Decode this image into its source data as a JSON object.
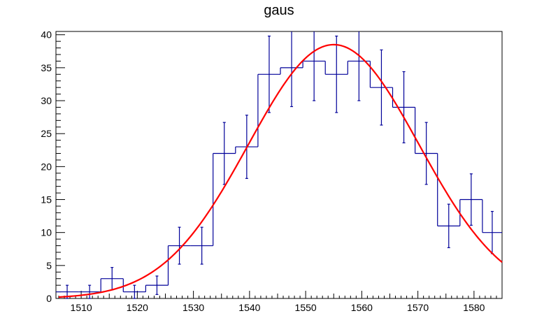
{
  "chart_data": {
    "type": "histogram",
    "title": "gaus",
    "xlabel": "",
    "ylabel": "",
    "xlim": [
      1505.5,
      1585
    ],
    "ylim": [
      0,
      40.5
    ],
    "grid": false,
    "x_ticks": [
      1510,
      1520,
      1530,
      1540,
      1550,
      1560,
      1570,
      1580
    ],
    "x_tick_labels": [
      "1510",
      "1520",
      "1530",
      "1540",
      "1550",
      "1560",
      "1570",
      "1580"
    ],
    "y_ticks": [
      0,
      5,
      10,
      15,
      20,
      25,
      30,
      35,
      40
    ],
    "y_tick_labels": [
      "0",
      "5",
      "10",
      "15",
      "20",
      "25",
      "30",
      "35",
      "40"
    ],
    "series": [
      {
        "kind": "histogram",
        "color": "#000099",
        "bins": [
          {
            "x_low": 1505.5,
            "x_high": 1509.5,
            "y": 1,
            "err": 1
          },
          {
            "x_low": 1509.5,
            "x_high": 1513.5,
            "y": 1,
            "err": 1
          },
          {
            "x_low": 1513.5,
            "x_high": 1517.5,
            "y": 3,
            "err": 1.7
          },
          {
            "x_low": 1517.5,
            "x_high": 1521.5,
            "y": 1,
            "err": 1
          },
          {
            "x_low": 1521.5,
            "x_high": 1525.5,
            "y": 2,
            "err": 1.4
          },
          {
            "x_low": 1525.5,
            "x_high": 1529.5,
            "y": 8,
            "err": 2.8
          },
          {
            "x_low": 1529.5,
            "x_high": 1533.5,
            "y": 8,
            "err": 2.8
          },
          {
            "x_low": 1533.5,
            "x_high": 1537.5,
            "y": 22,
            "err": 4.7
          },
          {
            "x_low": 1537.5,
            "x_high": 1541.5,
            "y": 23,
            "err": 4.8
          },
          {
            "x_low": 1541.5,
            "x_high": 1545.5,
            "y": 34,
            "err": 5.8
          },
          {
            "x_low": 1545.5,
            "x_high": 1549.5,
            "y": 35,
            "err": 5.9
          },
          {
            "x_low": 1549.5,
            "x_high": 1553.5,
            "y": 36,
            "err": 6
          },
          {
            "x_low": 1553.5,
            "x_high": 1557.5,
            "y": 34,
            "err": 5.8
          },
          {
            "x_low": 1557.5,
            "x_high": 1561.5,
            "y": 36,
            "err": 6
          },
          {
            "x_low": 1561.5,
            "x_high": 1565.5,
            "y": 32,
            "err": 5.7
          },
          {
            "x_low": 1565.5,
            "x_high": 1569.5,
            "y": 29,
            "err": 5.4
          },
          {
            "x_low": 1569.5,
            "x_high": 1573.5,
            "y": 22,
            "err": 4.7
          },
          {
            "x_low": 1573.5,
            "x_high": 1577.5,
            "y": 11,
            "err": 3.3
          },
          {
            "x_low": 1577.5,
            "x_high": 1581.5,
            "y": 15,
            "err": 3.9
          },
          {
            "x_low": 1581.5,
            "x_high": 1585,
            "y": 10,
            "err": 3.2
          }
        ]
      },
      {
        "kind": "fit-curve",
        "color": "#ff0000",
        "function": "gaus",
        "constant": 38.5,
        "mean": 1555,
        "sigma": 15.2,
        "x_range": [
          1506,
          1585
        ]
      }
    ]
  }
}
